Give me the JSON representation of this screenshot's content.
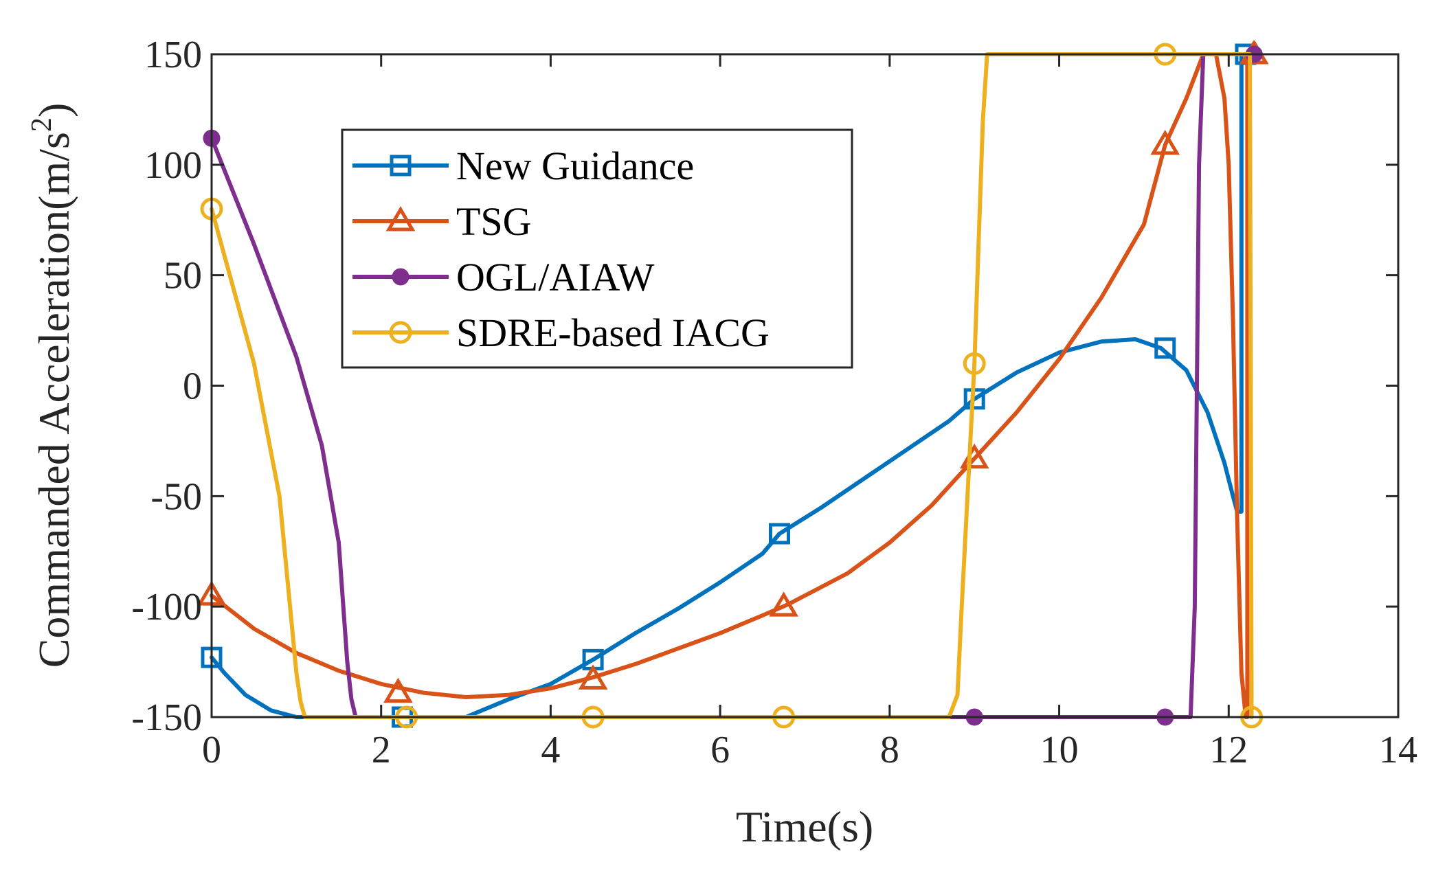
{
  "chart_data": {
    "type": "line",
    "title": "",
    "xlabel": "Time(s)",
    "ylabel": "Commanded Acceleration(m/s",
    "ylabel_superscript": "2",
    "ylabel_close": ")",
    "xlim": [
      0,
      14
    ],
    "ylim": [
      -150,
      150
    ],
    "xticks": [
      0,
      2,
      4,
      6,
      8,
      10,
      12,
      14
    ],
    "yticks": [
      -150,
      -100,
      -50,
      0,
      50,
      100,
      150
    ],
    "legend_position": "upper-left",
    "grid": false,
    "series": [
      {
        "name": "New Guidance",
        "color": "#0072BD",
        "marker": "square",
        "line": [
          [
            0,
            -123
          ],
          [
            0.15,
            -130
          ],
          [
            0.4,
            -140
          ],
          [
            0.7,
            -147
          ],
          [
            1.0,
            -150
          ],
          [
            3.0,
            -150
          ],
          [
            3.5,
            -142
          ],
          [
            4.0,
            -135
          ],
          [
            4.5,
            -124
          ],
          [
            5.0,
            -112
          ],
          [
            5.5,
            -101
          ],
          [
            6.0,
            -89
          ],
          [
            6.5,
            -76
          ],
          [
            6.7,
            -67
          ],
          [
            7.2,
            -55
          ],
          [
            7.7,
            -42
          ],
          [
            8.2,
            -29
          ],
          [
            8.7,
            -16
          ],
          [
            9.0,
            -6
          ],
          [
            9.5,
            6
          ],
          [
            10.0,
            15
          ],
          [
            10.5,
            20
          ],
          [
            10.9,
            21
          ],
          [
            11.2,
            17
          ],
          [
            11.5,
            7
          ],
          [
            11.75,
            -12
          ],
          [
            11.95,
            -35
          ],
          [
            12.05,
            -50
          ],
          [
            12.1,
            -57
          ],
          [
            12.15,
            -57
          ],
          [
            12.15,
            150
          ],
          [
            12.25,
            150
          ]
        ],
        "markers": [
          [
            0,
            -123
          ],
          [
            2.25,
            -150
          ],
          [
            4.5,
            -124
          ],
          [
            6.7,
            -67
          ],
          [
            9.0,
            -6
          ],
          [
            11.25,
            17
          ],
          [
            12.2,
            150
          ]
        ]
      },
      {
        "name": "TSG",
        "color": "#D95319",
        "marker": "triangle",
        "line": [
          [
            0,
            -95
          ],
          [
            0.5,
            -110
          ],
          [
            1.0,
            -121
          ],
          [
            1.5,
            -129
          ],
          [
            2.0,
            -135
          ],
          [
            2.5,
            -139
          ],
          [
            3.0,
            -141
          ],
          [
            3.5,
            -140
          ],
          [
            4.0,
            -137
          ],
          [
            4.5,
            -132
          ],
          [
            5.0,
            -126
          ],
          [
            5.5,
            -119
          ],
          [
            6.0,
            -112
          ],
          [
            6.5,
            -104
          ],
          [
            6.8,
            -99
          ],
          [
            7.5,
            -85
          ],
          [
            8.0,
            -71
          ],
          [
            8.5,
            -54
          ],
          [
            9.0,
            -33
          ],
          [
            9.5,
            -12
          ],
          [
            10.0,
            12
          ],
          [
            10.5,
            40
          ],
          [
            11.0,
            73
          ],
          [
            11.25,
            109
          ],
          [
            11.5,
            130
          ],
          [
            11.7,
            150
          ],
          [
            11.85,
            150
          ],
          [
            11.95,
            130
          ],
          [
            12.0,
            100
          ],
          [
            12.05,
            30
          ],
          [
            12.1,
            -60
          ],
          [
            12.15,
            -130
          ],
          [
            12.2,
            -150
          ],
          [
            12.22,
            -150
          ],
          [
            12.22,
            150
          ],
          [
            12.3,
            150
          ]
        ],
        "markers": [
          [
            0,
            -95
          ],
          [
            2.2,
            -139
          ],
          [
            4.5,
            -133
          ],
          [
            6.75,
            -100
          ],
          [
            9.0,
            -33
          ],
          [
            11.25,
            109
          ],
          [
            12.3,
            150
          ]
        ]
      },
      {
        "name": "OGL/AIAW",
        "color": "#7E2F8E",
        "marker": "dot",
        "line": [
          [
            0,
            112
          ],
          [
            0.5,
            64
          ],
          [
            1.0,
            13
          ],
          [
            1.3,
            -27
          ],
          [
            1.5,
            -71
          ],
          [
            1.6,
            -125
          ],
          [
            1.65,
            -142
          ],
          [
            1.7,
            -150
          ],
          [
            11.55,
            -150
          ],
          [
            11.6,
            -100
          ],
          [
            11.65,
            100
          ],
          [
            11.7,
            150
          ],
          [
            12.3,
            150
          ]
        ],
        "markers": [
          [
            0,
            112
          ],
          [
            9.0,
            -150
          ],
          [
            11.25,
            -150
          ],
          [
            12.3,
            150
          ]
        ]
      },
      {
        "name": "SDRE-based IACG",
        "color": "#EDB120",
        "marker": "circle",
        "line": [
          [
            0,
            80
          ],
          [
            0.5,
            10
          ],
          [
            0.8,
            -50
          ],
          [
            1.0,
            -130
          ],
          [
            1.05,
            -143
          ],
          [
            1.1,
            -150
          ],
          [
            8.7,
            -150
          ],
          [
            8.8,
            -140
          ],
          [
            8.85,
            -100
          ],
          [
            9.0,
            10
          ],
          [
            9.1,
            120
          ],
          [
            9.15,
            150
          ],
          [
            12.25,
            150
          ],
          [
            12.27,
            -150
          ]
        ],
        "markers": [
          [
            0,
            80
          ],
          [
            2.3,
            -150
          ],
          [
            4.5,
            -150
          ],
          [
            6.75,
            -150
          ],
          [
            9.0,
            10
          ],
          [
            11.25,
            150
          ],
          [
            12.27,
            -150
          ]
        ]
      }
    ]
  }
}
